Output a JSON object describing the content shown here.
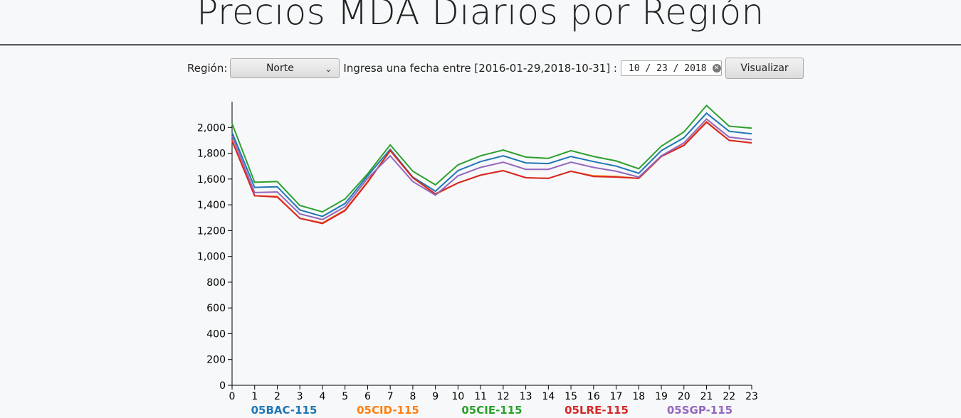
{
  "header": {
    "title": "Precios MDA Diarios por Región"
  },
  "controls": {
    "region_label": "Región:",
    "region_value": "Norte",
    "date_label": "Ingresa una fecha entre [2016-01-29,2018-10-31] :",
    "date_value": "10 / 23 / 2018",
    "button_label": "Visualizar"
  },
  "chart_data": {
    "type": "line",
    "title": "",
    "xlabel": "",
    "ylabel": "",
    "x": [
      0,
      1,
      2,
      3,
      4,
      5,
      6,
      7,
      8,
      9,
      10,
      11,
      12,
      13,
      14,
      15,
      16,
      17,
      18,
      19,
      20,
      21,
      22,
      23
    ],
    "xlim": [
      0,
      23
    ],
    "ylim": [
      0,
      2200
    ],
    "y_ticks": [
      0,
      200,
      400,
      600,
      800,
      1000,
      1200,
      1400,
      1600,
      1800,
      2000
    ],
    "y_tick_labels": [
      "0",
      "200",
      "400",
      "600",
      "800",
      "1,000",
      "1,200",
      "1,400",
      "1,600",
      "1,800",
      "2,000"
    ],
    "grid": false,
    "legend_position": "bottom",
    "series": [
      {
        "name": "05BAC-115",
        "color": "#1f77b4",
        "values": [
          1960,
          1535,
          1540,
          1360,
          1310,
          1410,
          1625,
          1830,
          1615,
          1505,
          1665,
          1735,
          1780,
          1725,
          1720,
          1775,
          1735,
          1700,
          1645,
          1820,
          1920,
          2110,
          1970,
          1950
        ]
      },
      {
        "name": "05CID-115",
        "color": "#ff7f0e",
        "values": [
          1900,
          1470,
          1465,
          1295,
          1260,
          1360,
          1580,
          1820,
          1610,
          1480,
          1570,
          1630,
          1665,
          1610,
          1605,
          1660,
          1625,
          1620,
          1605,
          1775,
          1865,
          2045,
          1900,
          1880
        ]
      },
      {
        "name": "05CIE-115",
        "color": "#2ca02c",
        "values": [
          2030,
          1575,
          1580,
          1395,
          1345,
          1445,
          1640,
          1865,
          1660,
          1555,
          1710,
          1780,
          1825,
          1770,
          1760,
          1820,
          1775,
          1740,
          1680,
          1855,
          1965,
          2170,
          2010,
          1995
        ]
      },
      {
        "name": "05LRE-115",
        "color": "#d62728",
        "values": [
          1895,
          1470,
          1460,
          1295,
          1255,
          1355,
          1575,
          1820,
          1610,
          1485,
          1570,
          1630,
          1665,
          1610,
          1605,
          1660,
          1620,
          1615,
          1605,
          1775,
          1860,
          2040,
          1900,
          1880
        ]
      },
      {
        "name": "05SGP-115",
        "color": "#9467bd",
        "values": [
          1935,
          1495,
          1500,
          1330,
          1285,
          1385,
          1605,
          1780,
          1580,
          1475,
          1625,
          1690,
          1730,
          1675,
          1675,
          1730,
          1690,
          1660,
          1615,
          1780,
          1880,
          2065,
          1925,
          1905
        ]
      }
    ]
  }
}
